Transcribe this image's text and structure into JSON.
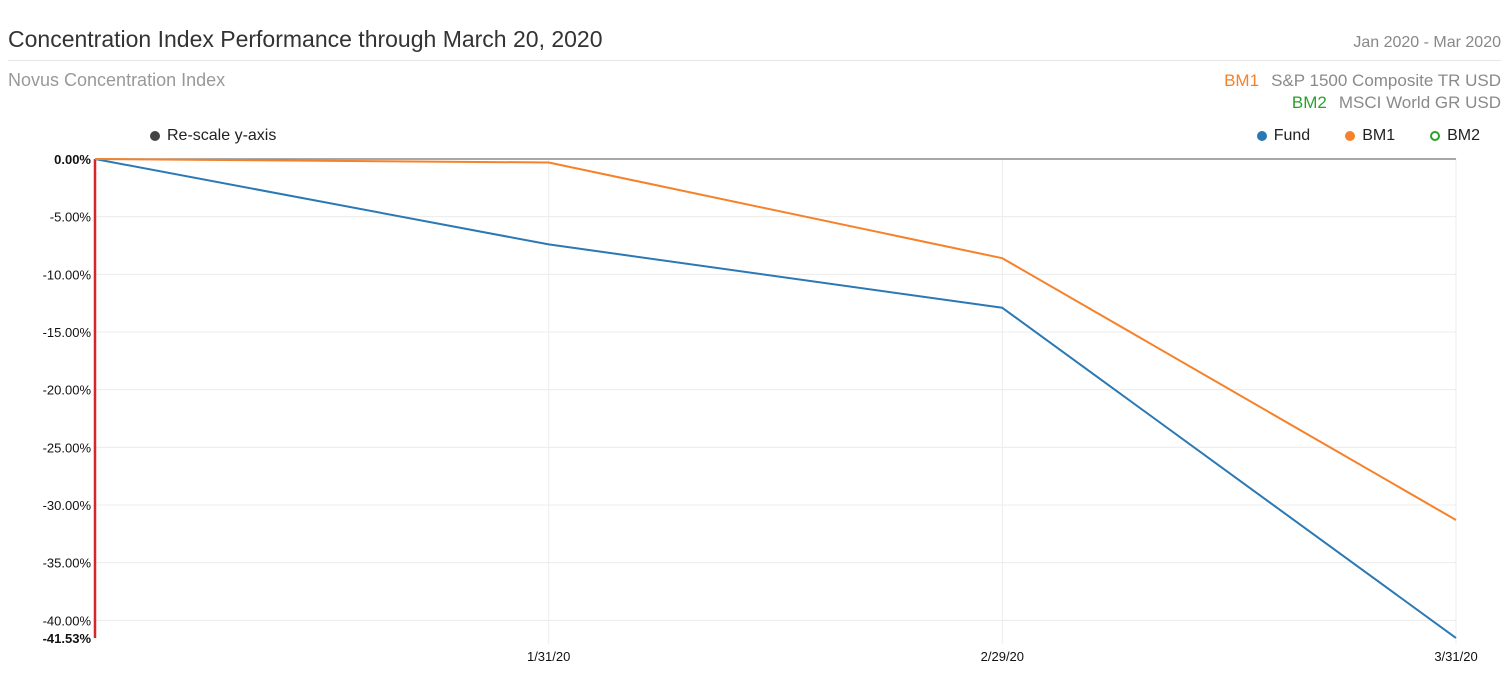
{
  "header": {
    "title": "Concentration Index Performance through March 20, 2020",
    "date_range": "Jan 2020 - Mar 2020",
    "subtitle": "Novus Concentration Index"
  },
  "benchmarks": [
    {
      "code": "BM1",
      "name": "S&P 1500 Composite TR USD",
      "color": "#f5822a"
    },
    {
      "code": "BM2",
      "name": "MSCI World GR USD",
      "color": "#2ca02c"
    }
  ],
  "controls": {
    "rescale_label": "Re-scale y-axis",
    "rescale_color": "#444444"
  },
  "legend": [
    {
      "label": "Fund",
      "color": "#2a78b4",
      "style": "filled"
    },
    {
      "label": "BM1",
      "color": "#f5822a",
      "style": "filled"
    },
    {
      "label": "BM2",
      "color": "#2ca02c",
      "style": "hollow"
    }
  ],
  "chart_data": {
    "type": "line",
    "x": [
      "",
      "1/31/20",
      "2/29/20",
      "3/31/20"
    ],
    "ylim": [
      -41.53,
      0
    ],
    "y_ticks": [
      0,
      -5,
      -10,
      -15,
      -20,
      -25,
      -30,
      -35,
      -40,
      -41.53
    ],
    "y_tick_labels": [
      "0.00%",
      "-5.00%",
      "-10.00%",
      "-15.00%",
      "-20.00%",
      "-25.00%",
      "-30.00%",
      "-35.00%",
      "-40.00%",
      "-41.53%"
    ],
    "grid": true,
    "series": [
      {
        "name": "Fund",
        "color": "#2a78b4",
        "values": [
          0,
          -7.4,
          -12.9,
          -41.53
        ]
      },
      {
        "name": "BM1",
        "color": "#f5822a",
        "values": [
          0,
          -0.3,
          -8.6,
          -31.3
        ]
      }
    ]
  }
}
